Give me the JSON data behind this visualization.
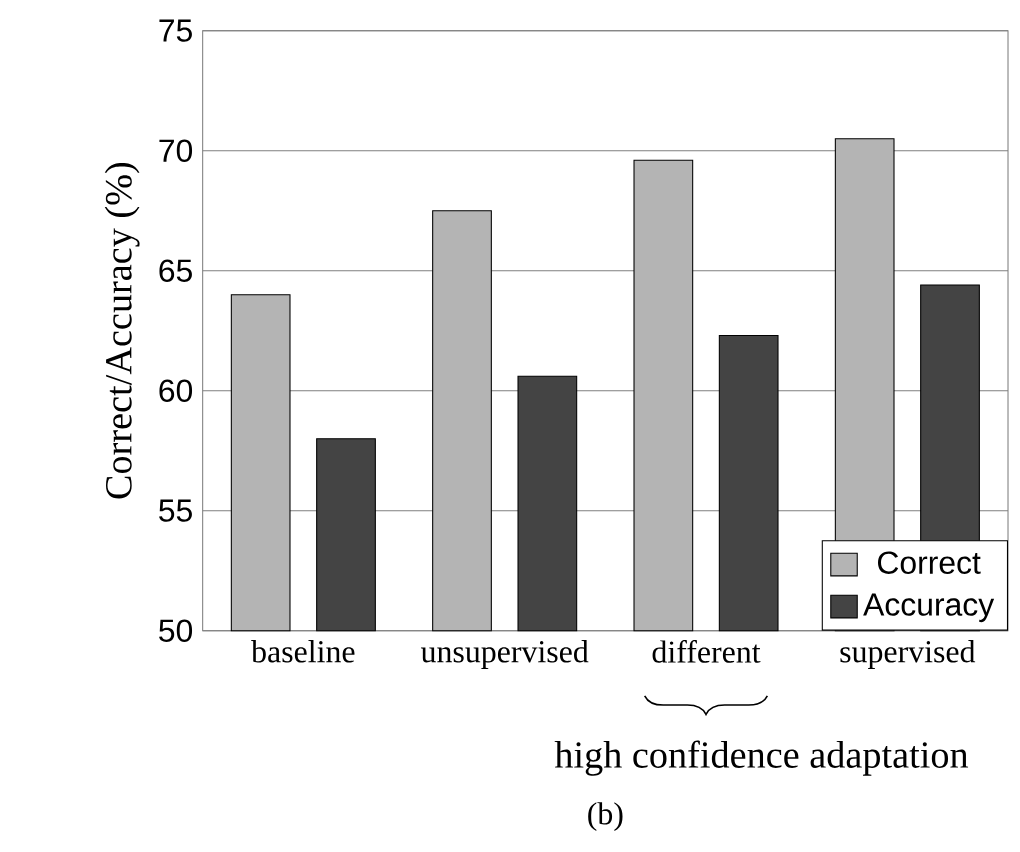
{
  "chart_data": {
    "type": "bar",
    "ylabel": "Correct/Accuracy (%)",
    "categories": [
      "baseline",
      "unsupervised",
      "different",
      "supervised"
    ],
    "series": [
      {
        "name": "Correct",
        "color": "#b4b4b4",
        "values": [
          64,
          67.5,
          69.6,
          70.5
        ]
      },
      {
        "name": "Accuracy",
        "color": "#444444",
        "values": [
          58,
          60.6,
          62.3,
          64.4
        ]
      }
    ],
    "ylim": [
      50,
      75
    ],
    "yticks": [
      50,
      55,
      60,
      65,
      70,
      75
    ],
    "grid": "y",
    "legend": "bottom right",
    "annotations": [
      "high confidence adaptation",
      "(b)"
    ]
  }
}
